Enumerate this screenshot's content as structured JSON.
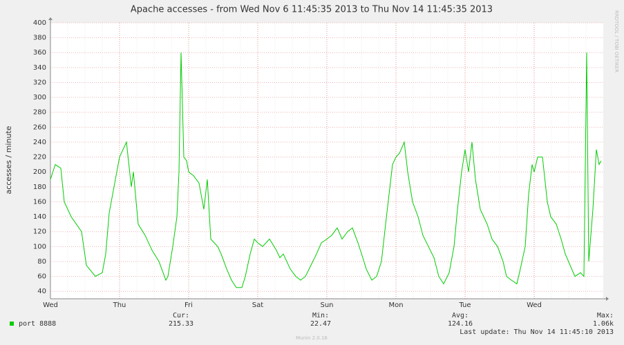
{
  "chart_data": {
    "type": "line",
    "title": "Apache accesses - from Wed Nov  6 11:45:35 2013 to Thu Nov 14 11:45:35 2013",
    "y_label": "accesses / minute",
    "side_label": "RRDTOOL / TOBI OETIKER",
    "footer": "Munin 2.0.16",
    "last_update": "Last update: Thu Nov 14 11:45:10 2013",
    "grid": true,
    "xlim": [
      0,
      8
    ],
    "xticks": [
      {
        "value": 0,
        "label": "Wed"
      },
      {
        "value": 1,
        "label": "Thu"
      },
      {
        "value": 2,
        "label": "Fri"
      },
      {
        "value": 3,
        "label": "Sat"
      },
      {
        "value": 4,
        "label": "Sun"
      },
      {
        "value": 5,
        "label": "Mon"
      },
      {
        "value": 6,
        "label": "Tue"
      },
      {
        "value": 7,
        "label": "Wed"
      }
    ],
    "ylim": [
      30,
      400
    ],
    "yticks": [
      40,
      60,
      80,
      100,
      120,
      140,
      160,
      180,
      200,
      220,
      240,
      260,
      280,
      300,
      320,
      340,
      360,
      380,
      400
    ],
    "x": [
      0.0,
      0.07,
      0.15,
      0.2,
      0.3,
      0.45,
      0.52,
      0.65,
      0.75,
      0.8,
      0.85,
      0.92,
      1.0,
      1.05,
      1.1,
      1.17,
      1.2,
      1.27,
      1.37,
      1.47,
      1.57,
      1.67,
      1.7,
      1.77,
      1.83,
      1.86,
      1.89,
      1.93,
      1.97,
      2.0,
      2.07,
      2.15,
      2.22,
      2.27,
      2.32,
      2.42,
      2.47,
      2.55,
      2.62,
      2.69,
      2.77,
      2.82,
      2.89,
      2.95,
      3.0,
      3.07,
      3.17,
      3.27,
      3.32,
      3.37,
      3.47,
      3.55,
      3.62,
      3.69,
      3.77,
      3.85,
      3.92,
      4.0,
      4.07,
      4.15,
      4.22,
      4.3,
      4.37,
      4.45,
      4.52,
      4.57,
      4.65,
      4.72,
      4.79,
      4.85,
      4.9,
      4.95,
      5.0,
      5.05,
      5.12,
      5.17,
      5.24,
      5.32,
      5.39,
      5.47,
      5.55,
      5.62,
      5.69,
      5.77,
      5.84,
      5.89,
      5.95,
      6.0,
      6.05,
      6.1,
      6.15,
      6.22,
      6.32,
      6.39,
      6.47,
      6.55,
      6.6,
      6.67,
      6.75,
      6.8,
      6.87,
      6.92,
      6.97,
      7.0,
      7.05,
      7.12,
      7.19,
      7.24,
      7.32,
      7.39,
      7.45,
      7.52,
      7.59,
      7.67,
      7.72,
      7.76,
      7.79,
      7.85,
      7.9,
      7.94,
      7.97
    ],
    "series": [
      {
        "name": "port 8888",
        "color": "#00cc00",
        "values": [
          190,
          210,
          205,
          160,
          140,
          120,
          75,
          60,
          65,
          90,
          145,
          180,
          220,
          230,
          240,
          180,
          200,
          130,
          115,
          95,
          80,
          55,
          60,
          100,
          140,
          200,
          360,
          220,
          215,
          200,
          195,
          185,
          150,
          190,
          110,
          100,
          90,
          70,
          55,
          45,
          45,
          60,
          90,
          110,
          105,
          100,
          110,
          95,
          85,
          90,
          70,
          60,
          55,
          60,
          75,
          90,
          105,
          110,
          115,
          125,
          110,
          120,
          125,
          105,
          85,
          70,
          55,
          60,
          80,
          130,
          170,
          210,
          220,
          225,
          240,
          200,
          160,
          140,
          115,
          100,
          85,
          60,
          50,
          65,
          100,
          150,
          200,
          230,
          200,
          240,
          190,
          150,
          130,
          110,
          100,
          80,
          60,
          55,
          50,
          70,
          100,
          170,
          210,
          200,
          220,
          220,
          160,
          140,
          130,
          110,
          90,
          75,
          60,
          65,
          60,
          360,
          80,
          150,
          230,
          210,
          215
        ]
      }
    ],
    "stats": [
      {
        "label": "Cur:",
        "value": 215.33
      },
      {
        "label": "Min:",
        "value": 22.47
      },
      {
        "label": "Avg:",
        "value": 124.16
      },
      {
        "label": "Max:",
        "value": 1060,
        "value_label": "1.06k"
      }
    ]
  }
}
